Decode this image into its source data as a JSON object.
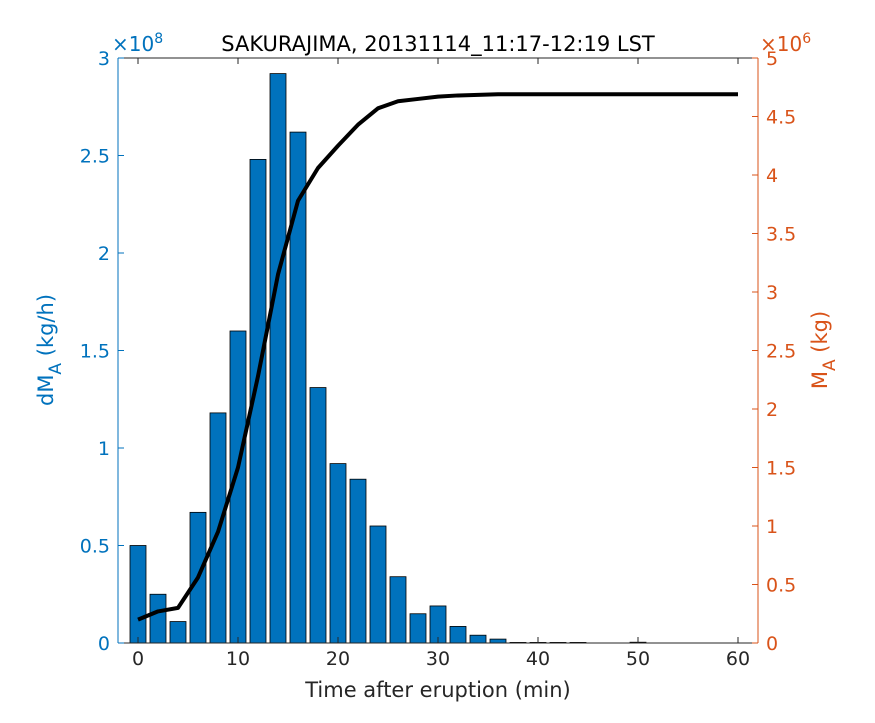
{
  "chart_data": {
    "type": "bar",
    "title": "SAKURAJIMA, 20131114_11:17-12:19 LST",
    "xlabel": "Time after eruption (min)",
    "xlim": [
      -2,
      62
    ],
    "xticks": [
      0,
      10,
      20,
      30,
      40,
      50,
      60
    ],
    "left_axis": {
      "label_main": "dM",
      "label_sub": "A",
      "label_unit": " (kg/h)",
      "ylim": [
        0,
        300000000
      ],
      "ticks": [
        0,
        50000000,
        100000000,
        150000000,
        200000000,
        250000000,
        300000000
      ],
      "tick_labels": [
        "0",
        "0.5",
        "1",
        "1.5",
        "2",
        "2.5",
        "3"
      ],
      "exponent_base": "×10",
      "exponent_power": "8",
      "color": "#0072BD"
    },
    "right_axis": {
      "label_main": "M",
      "label_sub": "A",
      "label_unit": " (kg)",
      "ylim": [
        0,
        5000000
      ],
      "ticks": [
        0,
        500000,
        1000000,
        1500000,
        2000000,
        2500000,
        3000000,
        3500000,
        4000000,
        4500000,
        5000000
      ],
      "tick_labels": [
        "0",
        "0.5",
        "1",
        "1.5",
        "2",
        "2.5",
        "3",
        "3.5",
        "4",
        "4.5",
        "5"
      ],
      "exponent_base": "×10",
      "exponent_power": "6",
      "color": "#D95319"
    },
    "bars": {
      "x": [
        0,
        2,
        4,
        6,
        8,
        10,
        12,
        14,
        16,
        18,
        20,
        22,
        24,
        26,
        28,
        30,
        32,
        34,
        36,
        38,
        40,
        42,
        44,
        46,
        48,
        50,
        52,
        54,
        56,
        58
      ],
      "values": [
        50000000,
        25000000,
        11000000,
        67000000,
        118000000,
        160000000,
        248000000,
        292000000,
        262000000,
        131000000,
        92000000,
        84000000,
        60000000,
        34000000,
        15000000,
        19000000,
        8500000,
        4000000,
        2000000,
        300000,
        300000,
        300000,
        300000,
        0,
        0,
        400000,
        0,
        0,
        0,
        0
      ],
      "bar_width": 1.6,
      "color": "#0072BD"
    },
    "line": {
      "x": [
        0,
        2,
        4,
        6,
        8,
        10,
        12,
        14,
        16,
        18,
        20,
        22,
        24,
        26,
        28,
        30,
        32,
        34,
        36,
        38,
        40,
        42,
        44,
        46,
        48,
        50,
        52,
        54,
        56,
        58,
        60
      ],
      "values": [
        200000,
        270000,
        300000,
        560000,
        950000,
        1500000,
        2280000,
        3150000,
        3780000,
        4060000,
        4250000,
        4430000,
        4570000,
        4630000,
        4650000,
        4670000,
        4680000,
        4685000,
        4690000,
        4690000,
        4690000,
        4690000,
        4690000,
        4690000,
        4690000,
        4690000,
        4690000,
        4690000,
        4690000,
        4690000,
        4690000
      ],
      "color": "#000000"
    }
  }
}
